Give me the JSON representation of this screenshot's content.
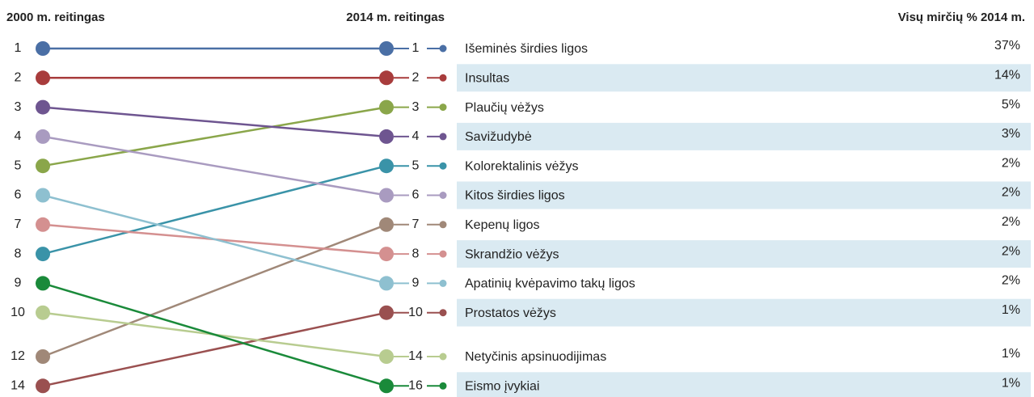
{
  "chart_data": {
    "type": "slope",
    "left_title": "2000 m. reitingas",
    "right_title": "2014 m. reitingas",
    "value_title": "Visų mirčių % 2014 m.",
    "categories": [
      "Išeminės širdies ligos",
      "Insultas",
      "Plaučių vėžys",
      "Savižudybė",
      "Kolorektalinis vėžys",
      "Kitos širdies ligos",
      "Kepenų ligos",
      "Skrandžio vėžys",
      "Apatinių kvėpavimo takų ligos",
      "Prostatos vėžys",
      "Netyčinis apsinuodijimas",
      "Eismo įvykiai"
    ],
    "rank_2000": [
      1,
      2,
      5,
      3,
      8,
      4,
      12,
      7,
      6,
      14,
      10,
      9
    ],
    "rank_2014": [
      1,
      2,
      3,
      4,
      5,
      6,
      7,
      8,
      9,
      10,
      14,
      16
    ],
    "values": [
      37,
      14,
      5,
      3,
      2,
      2,
      2,
      2,
      2,
      1,
      1,
      1
    ],
    "value_labels": [
      "37%",
      "14%",
      "5%",
      "3%",
      "2%",
      "2%",
      "2%",
      "2%",
      "2%",
      "1%",
      "1%",
      "1%"
    ],
    "colors": [
      "#4a6fa5",
      "#a83c3c",
      "#8aa64a",
      "#6e5590",
      "#3a93a8",
      "#a99bc0",
      "#a08878",
      "#d49090",
      "#8ec0d0",
      "#9a5050",
      "#b8cc90",
      "#1a8a3a"
    ]
  }
}
